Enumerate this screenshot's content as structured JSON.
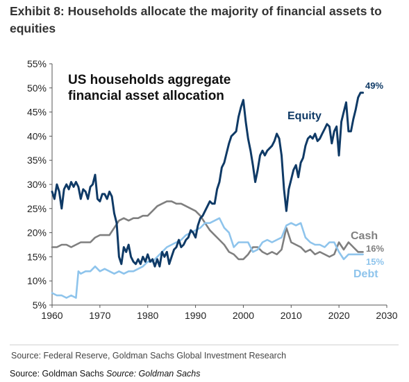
{
  "exhibit_title": "Exhibit 8: Households allocate the majority of financial assets to equities",
  "source_note": "Source: Federal Reserve, Goldman Sachs Global Investment Research",
  "footer": {
    "source": "Source: Goldman Sachs",
    "source_italic": "Source: Goldman Sachs"
  },
  "chart_data": {
    "type": "line",
    "title": "US households aggregate financial asset allocation",
    "title_lines": [
      "US households aggregate",
      "financial asset allocation"
    ],
    "xlim": [
      1960,
      2030
    ],
    "ylim": [
      5,
      55
    ],
    "x_ticks": [
      1960,
      1970,
      1980,
      1990,
      2000,
      2010,
      2020,
      2030
    ],
    "y_ticks": [
      5,
      10,
      15,
      20,
      25,
      30,
      35,
      40,
      45,
      50,
      55
    ],
    "y_tick_labels": [
      "5%",
      "10%",
      "15%",
      "20%",
      "25%",
      "30%",
      "35%",
      "40%",
      "45%",
      "50%",
      "55%"
    ],
    "grid": false,
    "series": [
      {
        "name": "Equity",
        "color": "#0f3a66",
        "end_label": "49%",
        "points": [
          [
            1960,
            28.5
          ],
          [
            1960.5,
            27
          ],
          [
            1961,
            30
          ],
          [
            1961.5,
            28.5
          ],
          [
            1962,
            25
          ],
          [
            1962.5,
            29
          ],
          [
            1963,
            30
          ],
          [
            1963.5,
            29
          ],
          [
            1964,
            30.5
          ],
          [
            1964.5,
            29.5
          ],
          [
            1965,
            30.5
          ],
          [
            1965.5,
            29.5
          ],
          [
            1966,
            27
          ],
          [
            1966.5,
            29
          ],
          [
            1967,
            28.5
          ],
          [
            1967.5,
            27
          ],
          [
            1968,
            29.5
          ],
          [
            1968.5,
            30
          ],
          [
            1969,
            32
          ],
          [
            1969.5,
            27
          ],
          [
            1970,
            26.5
          ],
          [
            1970.5,
            28
          ],
          [
            1971,
            28
          ],
          [
            1971.5,
            27
          ],
          [
            1972,
            28.5
          ],
          [
            1972.5,
            27.5
          ],
          [
            1973,
            24
          ],
          [
            1973.5,
            22
          ],
          [
            1974,
            15
          ],
          [
            1974.5,
            13.5
          ],
          [
            1975,
            17
          ],
          [
            1975.5,
            16
          ],
          [
            1976,
            17.5
          ],
          [
            1976.5,
            15
          ],
          [
            1977,
            14
          ],
          [
            1977.5,
            13.5
          ],
          [
            1978,
            14.5
          ],
          [
            1978.5,
            13.5
          ],
          [
            1979,
            15
          ],
          [
            1979.5,
            14
          ],
          [
            1980,
            15.5
          ],
          [
            1980.5,
            14
          ],
          [
            1981,
            14.5
          ],
          [
            1981.5,
            13
          ],
          [
            1982,
            14.5
          ],
          [
            1982.5,
            13
          ],
          [
            1983,
            16
          ],
          [
            1983.5,
            15
          ],
          [
            1984,
            16
          ],
          [
            1984.5,
            13.5
          ],
          [
            1985,
            15
          ],
          [
            1985.5,
            16.5
          ],
          [
            1986,
            17
          ],
          [
            1986.5,
            18.5
          ],
          [
            1987,
            17
          ],
          [
            1987.5,
            17.5
          ],
          [
            1988,
            18.5
          ],
          [
            1988.5,
            19
          ],
          [
            1989,
            20.5
          ],
          [
            1989.5,
            20
          ],
          [
            1990,
            19
          ],
          [
            1990.5,
            21.5
          ],
          [
            1991,
            23
          ],
          [
            1991.5,
            23.5
          ],
          [
            1992,
            24.5
          ],
          [
            1992.5,
            25.5
          ],
          [
            1993,
            26.5
          ],
          [
            1993.5,
            26
          ],
          [
            1994,
            26
          ],
          [
            1994.5,
            29
          ],
          [
            1995,
            30.5
          ],
          [
            1995.5,
            33.5
          ],
          [
            1996,
            34.5
          ],
          [
            1996.5,
            36.5
          ],
          [
            1997,
            38.5
          ],
          [
            1997.5,
            40
          ],
          [
            1998,
            40.5
          ],
          [
            1998.5,
            41
          ],
          [
            1999,
            44
          ],
          [
            1999.5,
            46
          ],
          [
            2000,
            47.5
          ],
          [
            2000.5,
            43
          ],
          [
            2001,
            39.5
          ],
          [
            2001.5,
            37
          ],
          [
            2002,
            34
          ],
          [
            2002.5,
            30.5
          ],
          [
            2003,
            33
          ],
          [
            2003.5,
            36
          ],
          [
            2004,
            37
          ],
          [
            2004.5,
            36
          ],
          [
            2005,
            37
          ],
          [
            2005.5,
            37.5
          ],
          [
            2006,
            38
          ],
          [
            2006.5,
            39
          ],
          [
            2007,
            40.5
          ],
          [
            2007.5,
            39.5
          ],
          [
            2008,
            36
          ],
          [
            2008.5,
            29
          ],
          [
            2009,
            24.5
          ],
          [
            2009.5,
            29
          ],
          [
            2010,
            31
          ],
          [
            2010.5,
            33
          ],
          [
            2011,
            34
          ],
          [
            2011.5,
            31.5
          ],
          [
            2012,
            34.5
          ],
          [
            2012.5,
            35.5
          ],
          [
            2013,
            38
          ],
          [
            2013.5,
            39.5
          ],
          [
            2014,
            40
          ],
          [
            2014.5,
            39.5
          ],
          [
            2015,
            40.5
          ],
          [
            2015.5,
            39
          ],
          [
            2016,
            39.5
          ],
          [
            2016.5,
            40.5
          ],
          [
            2017,
            41.5
          ],
          [
            2017.5,
            42.5
          ],
          [
            2018,
            42
          ],
          [
            2018.5,
            38.5
          ],
          [
            2019,
            41
          ],
          [
            2019.5,
            42
          ],
          [
            2020,
            36
          ],
          [
            2020.5,
            43
          ],
          [
            2021,
            45
          ],
          [
            2021.5,
            47
          ],
          [
            2022,
            41
          ],
          [
            2022.5,
            41
          ],
          [
            2023,
            43.5
          ],
          [
            2023.5,
            45.5
          ],
          [
            2024,
            48
          ],
          [
            2024.5,
            49
          ],
          [
            2025,
            49
          ]
        ]
      },
      {
        "name": "Cash",
        "color": "#7f7f7f",
        "end_label": "16%",
        "points": [
          [
            1960,
            17
          ],
          [
            1961,
            17
          ],
          [
            1962,
            17.5
          ],
          [
            1963,
            17.5
          ],
          [
            1964,
            17
          ],
          [
            1965,
            17.5
          ],
          [
            1966,
            18
          ],
          [
            1967,
            18
          ],
          [
            1968,
            18
          ],
          [
            1969,
            19
          ],
          [
            1970,
            19.5
          ],
          [
            1971,
            19.5
          ],
          [
            1972,
            19.5
          ],
          [
            1973,
            21
          ],
          [
            1974,
            22.5
          ],
          [
            1975,
            23
          ],
          [
            1976,
            22.5
          ],
          [
            1977,
            23
          ],
          [
            1978,
            23
          ],
          [
            1979,
            23.5
          ],
          [
            1980,
            23.5
          ],
          [
            1981,
            24.5
          ],
          [
            1982,
            25.5
          ],
          [
            1983,
            26
          ],
          [
            1984,
            26.5
          ],
          [
            1985,
            26.5
          ],
          [
            1986,
            26
          ],
          [
            1987,
            26
          ],
          [
            1988,
            25.5
          ],
          [
            1989,
            25
          ],
          [
            1990,
            24.5
          ],
          [
            1991,
            23.5
          ],
          [
            1992,
            22
          ],
          [
            1993,
            20.5
          ],
          [
            1994,
            19.5
          ],
          [
            1995,
            18.5
          ],
          [
            1996,
            17.5
          ],
          [
            1997,
            16
          ],
          [
            1998,
            15.5
          ],
          [
            1999,
            14.5
          ],
          [
            2000,
            14.5
          ],
          [
            2001,
            15.5
          ],
          [
            2002,
            17
          ],
          [
            2003,
            17
          ],
          [
            2004,
            16
          ],
          [
            2005,
            15.5
          ],
          [
            2006,
            16
          ],
          [
            2007,
            15.5
          ],
          [
            2008,
            16.5
          ],
          [
            2009,
            21
          ],
          [
            2010,
            18
          ],
          [
            2011,
            17.5
          ],
          [
            2012,
            17
          ],
          [
            2013,
            16
          ],
          [
            2014,
            16.5
          ],
          [
            2015,
            15.5
          ],
          [
            2016,
            16
          ],
          [
            2017,
            15.5
          ],
          [
            2018,
            15
          ],
          [
            2019,
            15.5
          ],
          [
            2020,
            18
          ],
          [
            2021,
            16.5
          ],
          [
            2022,
            18
          ],
          [
            2023,
            17
          ],
          [
            2024,
            16
          ],
          [
            2025,
            16
          ]
        ]
      },
      {
        "name": "Debt",
        "color": "#8ec4ec",
        "end_label": "15%",
        "points": [
          [
            1960,
            7.5
          ],
          [
            1961,
            7
          ],
          [
            1962,
            7
          ],
          [
            1963,
            6.5
          ],
          [
            1964,
            7
          ],
          [
            1965,
            6.5
          ],
          [
            1965.5,
            12
          ],
          [
            1966,
            11.5
          ],
          [
            1967,
            12
          ],
          [
            1968,
            12
          ],
          [
            1969,
            13
          ],
          [
            1970,
            12
          ],
          [
            1971,
            12.5
          ],
          [
            1972,
            12
          ],
          [
            1973,
            11.5
          ],
          [
            1974,
            12
          ],
          [
            1975,
            11.5
          ],
          [
            1976,
            12
          ],
          [
            1977,
            12
          ],
          [
            1978,
            12.5
          ],
          [
            1979,
            13
          ],
          [
            1980,
            14
          ],
          [
            1981,
            14
          ],
          [
            1982,
            15
          ],
          [
            1983,
            16
          ],
          [
            1984,
            17
          ],
          [
            1985,
            17.5
          ],
          [
            1986,
            18
          ],
          [
            1987,
            18.5
          ],
          [
            1988,
            19.5
          ],
          [
            1989,
            20
          ],
          [
            1990,
            20.5
          ],
          [
            1991,
            21
          ],
          [
            1992,
            22
          ],
          [
            1993,
            22
          ],
          [
            1994,
            22.5
          ],
          [
            1995,
            23
          ],
          [
            1996,
            21
          ],
          [
            1997,
            20
          ],
          [
            1998,
            17
          ],
          [
            1999,
            18
          ],
          [
            2000,
            18
          ],
          [
            2001,
            18
          ],
          [
            2002,
            16
          ],
          [
            2003,
            16.5
          ],
          [
            2004,
            18
          ],
          [
            2005,
            18.5
          ],
          [
            2006,
            18
          ],
          [
            2007,
            18.5
          ],
          [
            2008,
            19
          ],
          [
            2009,
            21.5
          ],
          [
            2010,
            22
          ],
          [
            2011,
            21.5
          ],
          [
            2012,
            22
          ],
          [
            2013,
            19
          ],
          [
            2014,
            18
          ],
          [
            2015,
            17.5
          ],
          [
            2016,
            17.5
          ],
          [
            2017,
            17
          ],
          [
            2018,
            18
          ],
          [
            2019,
            18
          ],
          [
            2020,
            16
          ],
          [
            2021,
            14.5
          ],
          [
            2022,
            15.5
          ],
          [
            2023,
            15.5
          ],
          [
            2024,
            15.5
          ],
          [
            2025,
            15.5
          ]
        ]
      }
    ]
  }
}
